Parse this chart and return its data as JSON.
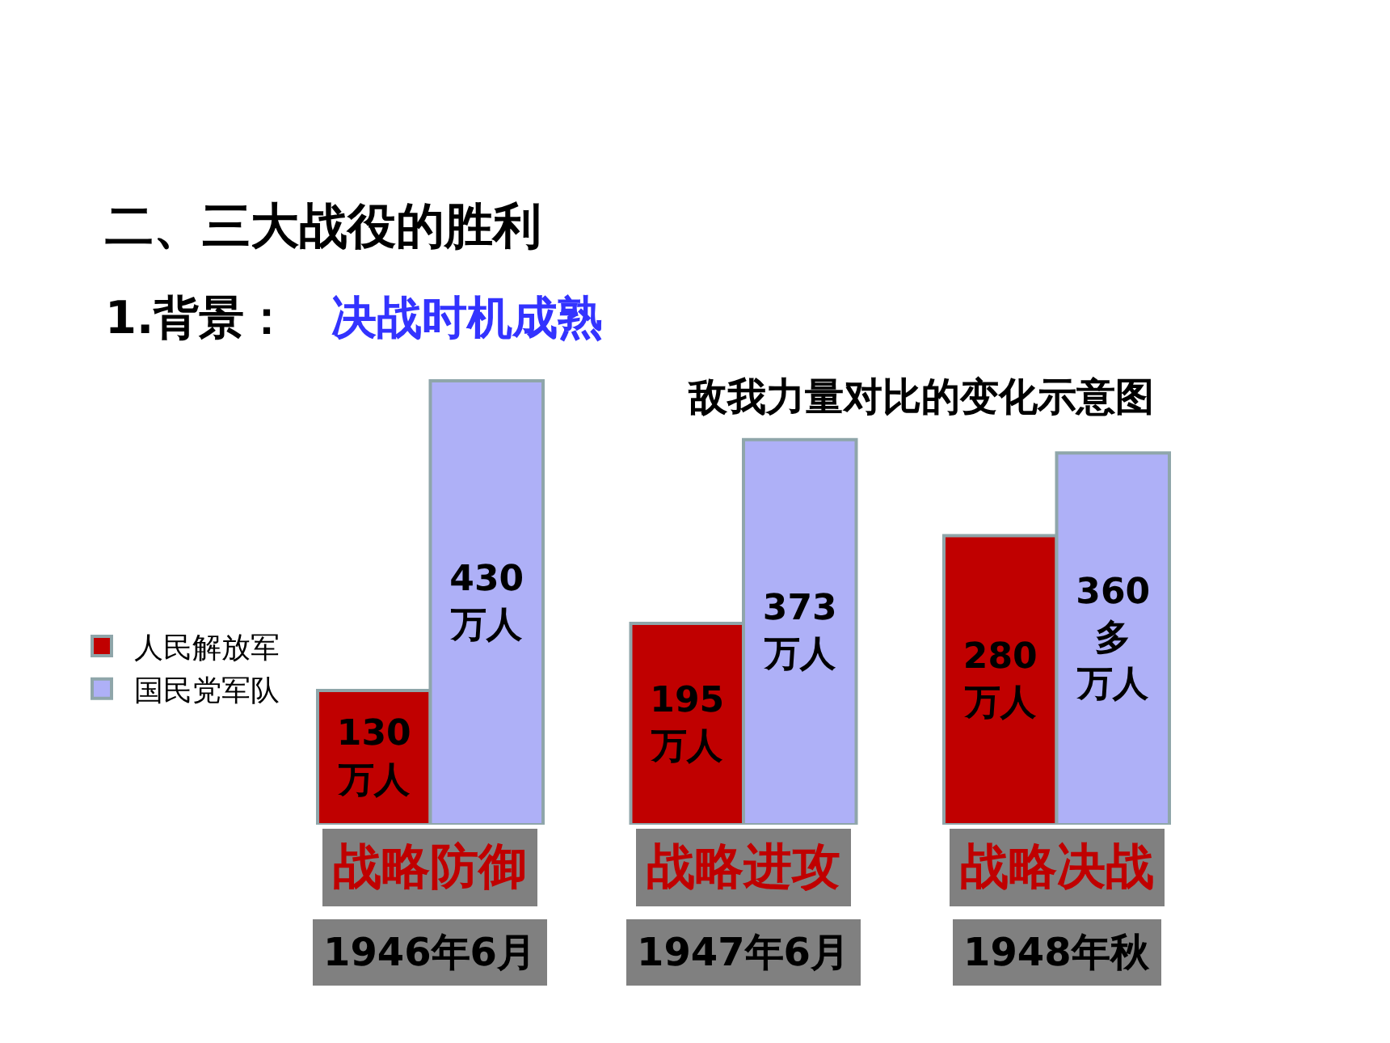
{
  "chart_data": {
    "type": "bar",
    "title": "敌我力量对比的变化示意图",
    "annotations": [
      "二、三大战役的胜利",
      "1.背景：",
      "决战时机成熟"
    ],
    "categories": [
      "战略防御\n1946年6月",
      "战略进攻\n1947年6月",
      "战略决战\n1948年秋"
    ],
    "series": [
      {
        "name": "人民解放军",
        "color": "#c00000",
        "values": [
          130,
          195,
          280
        ],
        "value_labels": [
          "130万人",
          "195万人",
          "280万人"
        ]
      },
      {
        "name": "国民党军队",
        "color": "#aeb0f7",
        "values": [
          430,
          373,
          360
        ],
        "value_labels": [
          "430万人",
          "373万人",
          "360多万人"
        ]
      }
    ],
    "legend": "left"
  }
}
